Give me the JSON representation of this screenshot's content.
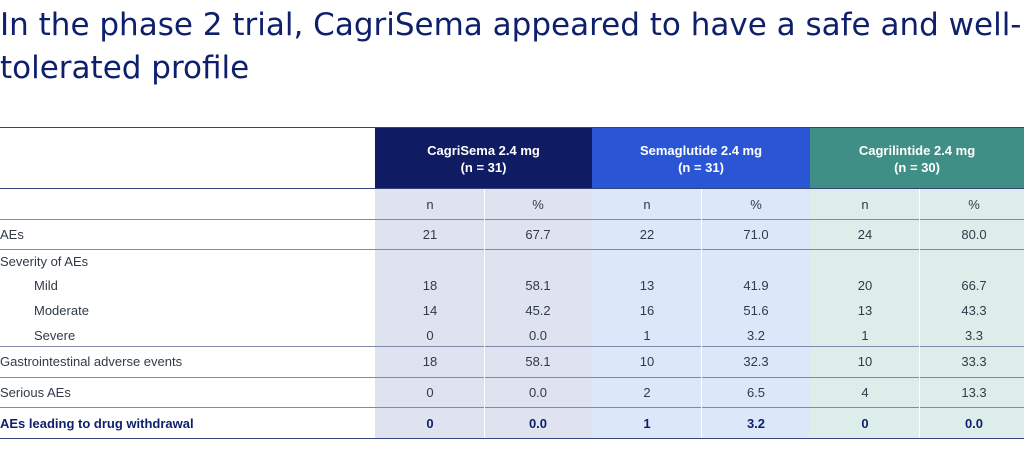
{
  "title": {
    "line1": "In the phase 2 trial, CagriSema appeared to have a safe and well-",
    "line2": "tolerated profile"
  },
  "groups": [
    {
      "name": "CagriSema 2.4 mg",
      "n": "(n = 31)",
      "color": "#0f1c64"
    },
    {
      "name": "Semaglutide 2.4 mg",
      "n": "(n = 31)",
      "color": "#2a56d6"
    },
    {
      "name": "Cagrilintide 2.4 mg",
      "n": "(n = 30)",
      "color": "#3f8f86"
    }
  ],
  "subheaders": [
    "n",
    "%",
    "n",
    "%",
    "n",
    "%"
  ],
  "rows": [
    {
      "label": "AEs",
      "values": [
        "21",
        "67.7",
        "22",
        "71.0",
        "24",
        "80.0"
      ]
    },
    {
      "label": "Severity of AEs",
      "values": [
        "",
        "",
        "",
        "",
        "",
        ""
      ]
    },
    {
      "label": "Mild",
      "values": [
        "18",
        "58.1",
        "13",
        "41.9",
        "20",
        "66.7"
      ]
    },
    {
      "label": "Moderate",
      "values": [
        "14",
        "45.2",
        "16",
        "51.6",
        "13",
        "43.3"
      ]
    },
    {
      "label": "Severe",
      "values": [
        "0",
        "0.0",
        "1",
        "3.2",
        "1",
        "3.3"
      ]
    },
    {
      "label": "Gastrointestinal adverse events",
      "values": [
        "18",
        "58.1",
        "10",
        "32.3",
        "10",
        "33.3"
      ]
    },
    {
      "label": "Serious AEs",
      "values": [
        "0",
        "0.0",
        "2",
        "6.5",
        "4",
        "13.3"
      ]
    },
    {
      "label": "AEs leading to drug withdrawal",
      "values": [
        "0",
        "0.0",
        "1",
        "3.2",
        "0",
        "0.0"
      ]
    }
  ]
}
